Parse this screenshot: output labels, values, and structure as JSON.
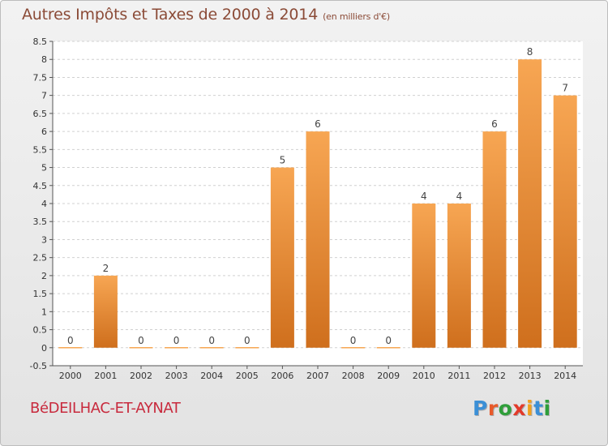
{
  "header": {
    "title": "Autres Impôts et Taxes de 2000 à 2014",
    "unit": "(en milliers d'€)"
  },
  "commune": "BéDEILHAC-ET-AYNAT",
  "brand": {
    "letters": [
      "P",
      "r",
      "o",
      "x",
      "i",
      "t",
      "i"
    ],
    "colors": [
      "#3b8fd6",
      "#e85a2a",
      "#2f9e3a",
      "#e23a2a",
      "#f2a01c",
      "#3b8fd6",
      "#2f9e3a"
    ]
  },
  "colors": {
    "bar_top": "#f7a653",
    "bar_bottom": "#cf6f1d",
    "grid": "#d0d0d0",
    "axis": "#555555"
  },
  "chart_data": {
    "type": "bar",
    "categories": [
      "2000",
      "2001",
      "2002",
      "2003",
      "2004",
      "2005",
      "2006",
      "2007",
      "2008",
      "2009",
      "2010",
      "2011",
      "2012",
      "2013",
      "2014"
    ],
    "values": [
      0,
      2,
      0,
      0,
      0,
      0,
      5,
      6,
      0,
      0,
      4,
      4,
      6,
      8,
      7
    ],
    "value_labels": [
      "0",
      "2",
      "0",
      "0",
      "0",
      "0",
      "5",
      "6",
      "0",
      "0",
      "4",
      "4",
      "6",
      "8",
      "7"
    ],
    "yticks": [
      "-0.5",
      "0",
      "0.5",
      "1",
      "1.5",
      "2",
      "2.5",
      "3",
      "3.5",
      "4",
      "4.5",
      "5",
      "5.5",
      "6",
      "6.5",
      "7",
      "7.5",
      "8",
      "8.5"
    ],
    "ylim": [
      -0.5,
      8.5
    ],
    "grid": true
  }
}
